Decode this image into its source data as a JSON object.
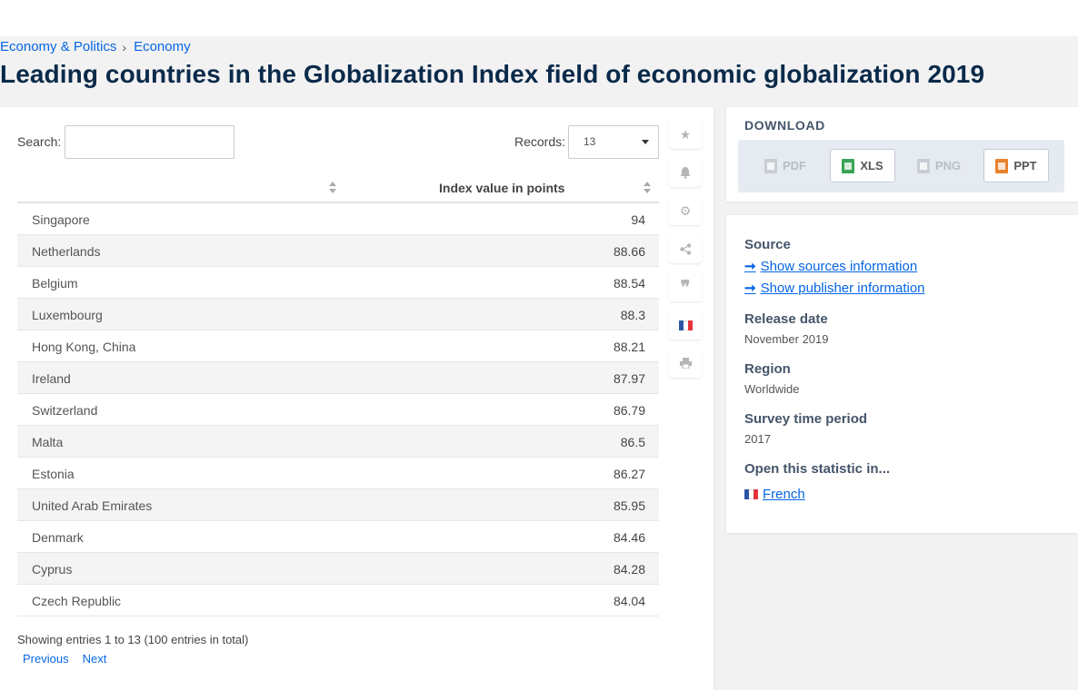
{
  "breadcrumb": {
    "item1": "Economy & Politics",
    "separator": "›",
    "item2": "Economy"
  },
  "page_title": "Leading countries in the Globalization Index field of economic globalization 2019",
  "controls": {
    "search_label": "Search:",
    "search_value": "",
    "records_label": "Records:",
    "records_value": "13"
  },
  "table": {
    "headers": [
      "",
      "Index value in points"
    ],
    "rows": [
      {
        "country": "Singapore",
        "value": "94"
      },
      {
        "country": "Netherlands",
        "value": "88.66"
      },
      {
        "country": "Belgium",
        "value": "88.54"
      },
      {
        "country": "Luxembourg",
        "value": "88.3"
      },
      {
        "country": "Hong Kong, China",
        "value": "88.21"
      },
      {
        "country": "Ireland",
        "value": "87.97"
      },
      {
        "country": "Switzerland",
        "value": "86.79"
      },
      {
        "country": "Malta",
        "value": "86.5"
      },
      {
        "country": "Estonia",
        "value": "86.27"
      },
      {
        "country": "United Arab Emirates",
        "value": "85.95"
      },
      {
        "country": "Denmark",
        "value": "84.46"
      },
      {
        "country": "Cyprus",
        "value": "84.28"
      },
      {
        "country": "Czech Republic",
        "value": "84.04"
      }
    ],
    "info": "Showing entries 1 to 13 (100 entries in total)",
    "prev": "Previous",
    "next": "Next"
  },
  "toolbar_icons": [
    "star-icon",
    "bell-icon",
    "gear-icon",
    "share-icon",
    "quote-icon",
    "french-flag-icon",
    "print-icon"
  ],
  "download": {
    "title": "DOWNLOAD",
    "buttons": [
      {
        "label": "PDF",
        "enabled": false,
        "color": "#c9ced5"
      },
      {
        "label": "XLS",
        "enabled": true,
        "color": "#3aa357"
      },
      {
        "label": "PNG",
        "enabled": false,
        "color": "#c9ced5"
      },
      {
        "label": "PPT",
        "enabled": true,
        "color": "#e8812d"
      }
    ]
  },
  "meta": {
    "source_h": "Source",
    "source_link1": "Show sources information",
    "source_link2": "Show publisher information",
    "release_h": "Release date",
    "release_v": "November 2019",
    "region_h": "Region",
    "region_v": "Worldwide",
    "period_h": "Survey time period",
    "period_v": "2017",
    "open_h": "Open this statistic in...",
    "open_lang": "French"
  },
  "colors": {
    "link": "#0666e5",
    "title": "#0a2a4a"
  }
}
